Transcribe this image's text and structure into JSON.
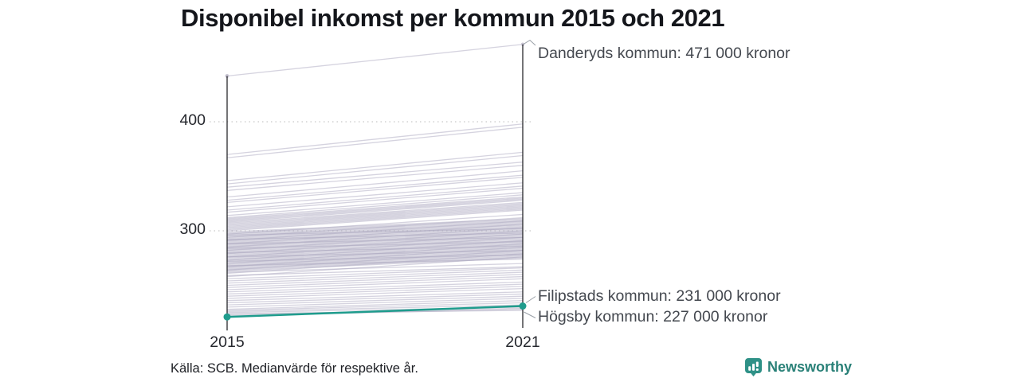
{
  "title": "Disponibel inkomst per kommun 2015 och 2021",
  "footer": {
    "source": "Källa: SCB. Medianvärde för respektive år.",
    "brand": "Newsworthy"
  },
  "colors": {
    "accent_teal": "#1f9c8d",
    "background_line": "#aba7c0",
    "endpoint_dot": "#c9c6d4",
    "axis": "#17181c",
    "grid": "#d2d2d2",
    "leader": "#9aa0a8",
    "brand_teal": "#2f9187",
    "brand_text_teal": "#2a8178"
  },
  "chart_data": {
    "type": "line",
    "subtype": "slopegraph",
    "title": "Disponibel inkomst per kommun 2015 och 2021",
    "x": [
      2015,
      2021
    ],
    "xticks": [
      {
        "label": "2015"
      },
      {
        "label": "2021"
      }
    ],
    "yticks": [
      {
        "label": "400",
        "value": 400
      },
      {
        "label": "300",
        "value": 300
      }
    ],
    "ylim": [
      218,
      478
    ],
    "grid": "dotted horizontal lines at y ticks",
    "legend": "none",
    "units": "tusen kronor",
    "highlight": {
      "name": "Filipstads kommun",
      "values": [
        221,
        231
      ]
    },
    "named_lines": [
      {
        "name": "Danderyds kommun",
        "values": [
          442,
          471
        ]
      },
      {
        "name": "Filipstads kommun",
        "values": [
          221,
          231
        ]
      },
      {
        "name": "Högsby kommun",
        "values": [
          224,
          227
        ]
      }
    ],
    "annotations": [
      {
        "label": "Danderyds kommun: 471 000 kronor",
        "x": 2021,
        "value_thousands": 471
      },
      {
        "label": "Filipstads kommun: 231 000 kronor",
        "x": 2021,
        "value_thousands": 231
      },
      {
        "label": "Högsby kommun: 227 000 kronor",
        "x": 2021,
        "value_thousands": 227
      }
    ],
    "background_lines": [
      [
        442,
        471
      ],
      [
        370,
        398
      ],
      [
        367,
        395
      ],
      [
        346,
        372
      ],
      [
        343,
        369
      ],
      [
        340,
        363
      ],
      [
        337,
        360
      ],
      [
        331,
        355
      ],
      [
        328,
        351
      ],
      [
        326,
        349
      ],
      [
        322,
        344
      ],
      [
        319,
        341
      ],
      [
        317,
        339
      ],
      [
        314,
        335
      ],
      [
        312,
        333
      ],
      [
        311,
        331
      ],
      [
        310,
        330
      ],
      [
        309,
        329
      ],
      [
        308,
        328
      ],
      [
        307,
        326
      ],
      [
        306,
        325
      ],
      [
        305,
        324
      ],
      [
        304,
        323
      ],
      [
        303,
        322
      ],
      [
        302,
        321
      ],
      [
        301,
        320
      ],
      [
        300,
        319
      ],
      [
        299,
        311
      ],
      [
        298,
        310
      ],
      [
        297,
        309
      ],
      [
        296,
        308
      ],
      [
        295,
        307
      ],
      [
        294,
        306
      ],
      [
        293,
        305
      ],
      [
        292,
        304
      ],
      [
        291,
        303
      ],
      [
        290,
        302
      ],
      [
        289,
        301
      ],
      [
        288,
        300
      ],
      [
        287,
        299
      ],
      [
        286,
        298
      ],
      [
        285,
        297
      ],
      [
        284,
        296
      ],
      [
        283,
        295
      ],
      [
        282,
        294
      ],
      [
        281,
        293
      ],
      [
        280,
        292
      ],
      [
        279,
        291
      ],
      [
        278,
        290
      ],
      [
        277,
        289
      ],
      [
        276,
        288
      ],
      [
        275,
        287
      ],
      [
        274,
        286
      ],
      [
        273,
        285
      ],
      [
        272,
        284
      ],
      [
        271,
        283
      ],
      [
        270,
        282
      ],
      [
        269,
        281
      ],
      [
        268,
        280
      ],
      [
        267,
        279
      ],
      [
        266,
        278
      ],
      [
        265,
        277
      ],
      [
        264,
        276
      ],
      [
        263,
        275
      ],
      [
        297,
        315
      ],
      [
        294,
        312
      ],
      [
        291,
        309
      ],
      [
        288,
        306
      ],
      [
        285,
        303
      ],
      [
        282,
        300
      ],
      [
        279,
        297
      ],
      [
        276,
        294
      ],
      [
        273,
        291
      ],
      [
        270,
        288
      ],
      [
        267,
        285
      ],
      [
        264,
        282
      ],
      [
        261,
        279
      ],
      [
        258,
        276
      ],
      [
        296,
        302
      ],
      [
        292,
        298
      ],
      [
        288,
        294
      ],
      [
        284,
        290
      ],
      [
        280,
        286
      ],
      [
        276,
        282
      ],
      [
        272,
        278
      ],
      [
        268,
        274
      ],
      [
        262,
        270
      ],
      [
        259,
        267
      ],
      [
        256,
        266
      ],
      [
        254,
        264
      ],
      [
        252,
        262
      ],
      [
        250,
        260
      ],
      [
        248,
        258
      ],
      [
        246,
        256
      ],
      [
        244,
        253
      ],
      [
        242,
        251
      ],
      [
        240,
        249
      ],
      [
        238,
        247
      ],
      [
        236,
        244
      ],
      [
        234,
        242
      ],
      [
        232,
        240
      ],
      [
        230,
        238
      ],
      [
        228,
        236
      ],
      [
        227,
        234
      ],
      [
        226,
        232
      ],
      [
        225,
        230
      ],
      [
        224,
        227
      ],
      [
        223,
        229
      ],
      [
        222,
        228
      ]
    ]
  }
}
